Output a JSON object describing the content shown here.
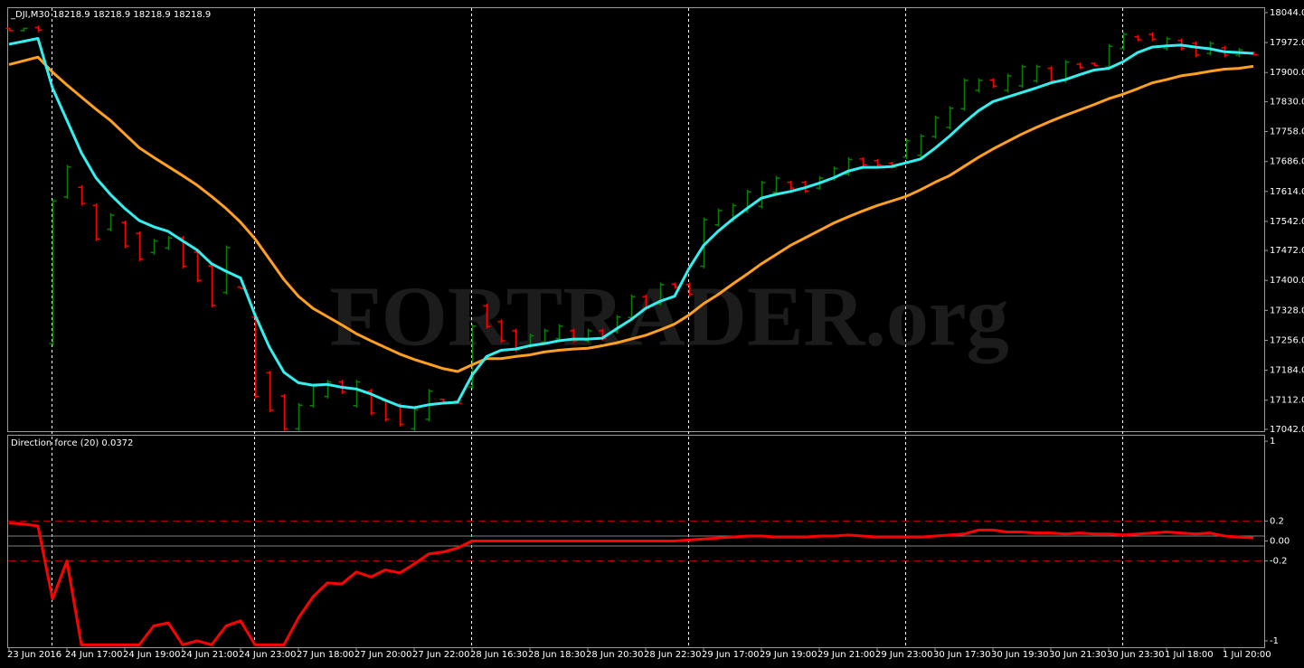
{
  "chart_data": [
    {
      "type": "ohlc",
      "title": "_DJI,M30  18218.9 18218.9 18218.9 18218.9",
      "watermark": "FORTRADER.org",
      "up_color": "#0b7d0b",
      "down_color": "#ff0000",
      "ylim": [
        17037.5,
        18057
      ],
      "yticks": [
        {
          "value": 18044,
          "label": "18044.0"
        },
        {
          "value": 17972,
          "label": "17972.0"
        },
        {
          "value": 17900,
          "label": "17900.0"
        },
        {
          "value": 17830,
          "label": "17830.0"
        },
        {
          "value": 17758,
          "label": "17758.0"
        },
        {
          "value": 17686,
          "label": "17686.0"
        },
        {
          "value": 17614,
          "label": "17614.0"
        },
        {
          "value": 17542,
          "label": "17542.0"
        },
        {
          "value": 17472,
          "label": "17472.0"
        },
        {
          "value": 17400,
          "label": "17400.0"
        },
        {
          "value": 17328,
          "label": "17328.0"
        },
        {
          "value": 17256,
          "label": "17256.0"
        },
        {
          "value": 17184,
          "label": "17184.0"
        },
        {
          "value": 17112,
          "label": "17112.0"
        },
        {
          "value": 17042,
          "label": "17042.0"
        }
      ],
      "session_breaks": [
        3,
        17,
        32,
        47,
        62,
        77
      ],
      "open": [
        18006,
        18001,
        18008,
        17248,
        17601,
        17624,
        17580,
        17523,
        17539,
        17513,
        17467,
        17478,
        17502,
        17468,
        17435,
        17371,
        17384,
        17312,
        17178,
        17122,
        17043,
        17099,
        17121,
        17156,
        17099,
        17134,
        17111,
        17100,
        17043,
        17066,
        17114,
        17110,
        17144,
        17339,
        17301,
        17279,
        17242,
        17251,
        17260,
        17279,
        17255,
        17279,
        17277,
        17311,
        17361,
        17344,
        17391,
        17390,
        17434,
        17534,
        17545,
        17567,
        17578,
        17612,
        17636,
        17636,
        17622,
        17645,
        17656,
        17692,
        17688,
        17682,
        17697,
        17701,
        17746,
        17768,
        17813,
        17857,
        17882,
        17857,
        17868,
        17880,
        17910,
        17880,
        17920,
        17922,
        17913,
        17958,
        17986,
        17992,
        17958,
        17977,
        17970,
        17946,
        17959,
        17942,
        17948
      ],
      "high": [
        18008,
        18008,
        18013,
        17596,
        17678,
        17629,
        17585,
        17562,
        17544,
        17518,
        17500,
        17507,
        17507,
        17473,
        17440,
        17484,
        17384,
        17317,
        17183,
        17127,
        17105,
        17150,
        17161,
        17161,
        17161,
        17139,
        17116,
        17105,
        17094,
        17139,
        17116,
        17112,
        17295,
        17344,
        17306,
        17284,
        17272,
        17284,
        17295,
        17284,
        17284,
        17284,
        17317,
        17366,
        17366,
        17395,
        17395,
        17395,
        17551,
        17573,
        17585,
        17618,
        17640,
        17651,
        17640,
        17640,
        17651,
        17674,
        17696,
        17696,
        17692,
        17685,
        17741,
        17752,
        17796,
        17819,
        17886,
        17886,
        17886,
        17897,
        17919,
        17919,
        17915,
        17930,
        17924,
        17924,
        17968,
        17997,
        17990,
        17997,
        17986,
        17982,
        17975,
        17975,
        17964,
        17959,
        17950
      ],
      "low": [
        17999,
        17999,
        17997,
        17243,
        17596,
        17580,
        17495,
        17518,
        17478,
        17446,
        17462,
        17473,
        17429,
        17395,
        17335,
        17366,
        17380,
        17116,
        17083,
        17038,
        17038,
        17094,
        17116,
        17127,
        17094,
        17076,
        17061,
        17049,
        17038,
        17061,
        17105,
        17103,
        17139,
        17284,
        17250,
        17228,
        17237,
        17246,
        17255,
        17250,
        17250,
        17255,
        17272,
        17306,
        17328,
        17339,
        17380,
        17362,
        17429,
        17529,
        17540,
        17562,
        17573,
        17607,
        17618,
        17611,
        17618,
        17640,
        17651,
        17674,
        17674,
        17669,
        17692,
        17696,
        17741,
        17763,
        17808,
        17852,
        17863,
        17852,
        17863,
        17875,
        17875,
        17875,
        17908,
        17915,
        17908,
        17953,
        17975,
        17975,
        17953,
        17953,
        17937,
        17941,
        17937,
        17937,
        17941
      ],
      "close": [
        18001,
        18006,
        18002,
        17591,
        17673,
        17585,
        17500,
        17557,
        17483,
        17451,
        17495,
        17502,
        17434,
        17400,
        17340,
        17479,
        17380,
        17121,
        17088,
        17043,
        17100,
        17145,
        17156,
        17132,
        17156,
        17081,
        17066,
        17054,
        17089,
        17134,
        17107,
        17105,
        17290,
        17289,
        17255,
        17233,
        17267,
        17279,
        17290,
        17255,
        17279,
        17260,
        17312,
        17361,
        17333,
        17390,
        17384,
        17367,
        17546,
        17568,
        17580,
        17613,
        17635,
        17646,
        17622,
        17615,
        17646,
        17669,
        17691,
        17678,
        17678,
        17672,
        17736,
        17747,
        17791,
        17814,
        17881,
        17881,
        17867,
        17892,
        17914,
        17914,
        17880,
        17925,
        17912,
        17917,
        17963,
        17992,
        17979,
        17980,
        17981,
        17958,
        17942,
        17970,
        17942,
        17954,
        17943
      ],
      "lines": [
        {
          "color": "#ffa020",
          "values": [
            17919,
            17928,
            17937,
            17901,
            17870,
            17841,
            17812,
            17785,
            17752,
            17719,
            17696,
            17674,
            17652,
            17629,
            17602,
            17573,
            17540,
            17500,
            17451,
            17402,
            17362,
            17333,
            17313,
            17293,
            17272,
            17255,
            17239,
            17223,
            17210,
            17199,
            17188,
            17181,
            17197,
            17212,
            17212,
            17217,
            17221,
            17228,
            17232,
            17235,
            17237,
            17243,
            17250,
            17259,
            17268,
            17281,
            17295,
            17317,
            17344,
            17366,
            17391,
            17415,
            17440,
            17462,
            17484,
            17502,
            17520,
            17538,
            17553,
            17567,
            17580,
            17591,
            17602,
            17618,
            17636,
            17652,
            17674,
            17696,
            17716,
            17734,
            17752,
            17768,
            17783,
            17797,
            17810,
            17823,
            17837,
            17848,
            17861,
            17875,
            17883,
            17892,
            17897,
            17903,
            17908,
            17910,
            17915
          ]
        },
        {
          "color": "#33f0f0",
          "values": [
            17968,
            17975,
            17982,
            17863,
            17785,
            17707,
            17647,
            17607,
            17573,
            17544,
            17529,
            17518,
            17495,
            17473,
            17440,
            17422,
            17406,
            17317,
            17239,
            17179,
            17154,
            17148,
            17150,
            17143,
            17139,
            17127,
            17112,
            17098,
            17094,
            17101,
            17105,
            17107,
            17172,
            17217,
            17232,
            17235,
            17243,
            17248,
            17255,
            17259,
            17259,
            17261,
            17284,
            17306,
            17333,
            17350,
            17362,
            17429,
            17484,
            17518,
            17547,
            17573,
            17598,
            17607,
            17614,
            17623,
            17634,
            17647,
            17663,
            17672,
            17672,
            17674,
            17683,
            17692,
            17718,
            17747,
            17779,
            17808,
            17830,
            17841,
            17852,
            17863,
            17875,
            17883,
            17895,
            17906,
            17910,
            17926,
            17948,
            17961,
            17964,
            17966,
            17961,
            17957,
            17950,
            17948,
            17946
          ]
        }
      ]
    },
    {
      "type": "line",
      "title": "Direction force (20) 0.0372",
      "color": "#ff0000",
      "ylim": [
        -1.064,
        1.064
      ],
      "yticks": [
        1,
        0.2,
        {
          "value": 0,
          "label": "0.00"
        },
        -0.2,
        -1
      ],
      "levels": [
        {
          "value": 0.2,
          "color": "#c00000",
          "dash": true
        },
        {
          "value": 0.05,
          "color": "#808080",
          "dash": false
        },
        {
          "value": -0.05,
          "color": "#808080",
          "dash": false
        },
        {
          "value": -0.2,
          "color": "#c00000",
          "dash": true
        }
      ],
      "categories": [
        "23 Jun 2016",
        null,
        null,
        null,
        "24 Jun 17:00",
        null,
        null,
        null,
        "24 Jun 19:00",
        null,
        null,
        null,
        "24 Jun 21:00",
        null,
        null,
        null,
        "24 Jun 23:00",
        null,
        null,
        null,
        "27 Jun 18:00",
        null,
        null,
        null,
        "27 Jun 20:00",
        null,
        null,
        null,
        "27 Jun 22:00",
        null,
        null,
        null,
        "28 Jun 16:30",
        null,
        null,
        null,
        "28 Jun 18:30",
        null,
        null,
        null,
        "28 Jun 20:30",
        null,
        null,
        null,
        "28 Jun 22:30",
        null,
        null,
        null,
        "29 Jun 17:00",
        null,
        null,
        null,
        "29 Jun 19:00",
        null,
        null,
        null,
        "29 Jun 21:00",
        null,
        null,
        null,
        "29 Jun 23:00",
        null,
        null,
        null,
        "30 Jun 17:30",
        null,
        null,
        null,
        "30 Jun 19:30",
        null,
        null,
        null,
        "30 Jun 21:30",
        null,
        null,
        null,
        "30 Jun 23:30",
        null,
        null,
        null,
        "1 Jul 18:00",
        null,
        null,
        null,
        "1 Jul 20:00",
        null,
        null
      ],
      "values": [
        0.18,
        0.17,
        0.15,
        -0.58,
        -0.2,
        -1.04,
        -1.04,
        -1.04,
        -1.04,
        -1.04,
        -0.85,
        -0.82,
        -1.04,
        -1,
        -1.04,
        -0.85,
        -0.8,
        -1.04,
        -1.04,
        -1.04,
        -0.77,
        -0.56,
        -0.42,
        -0.43,
        -0.31,
        -0.36,
        -0.29,
        -0.32,
        -0.23,
        -0.13,
        -0.11,
        -0.07,
        0,
        0,
        0,
        0,
        0,
        0,
        0,
        0,
        0,
        0,
        0,
        0,
        0,
        0,
        0,
        0.01,
        0.02,
        0.03,
        0.04,
        0.05,
        0.05,
        0.04,
        0.04,
        0.04,
        0.05,
        0.05,
        0.06,
        0.05,
        0.04,
        0.04,
        0.04,
        0.04,
        0.05,
        0.06,
        0.07,
        0.11,
        0.11,
        0.09,
        0.09,
        0.08,
        0.08,
        0.07,
        0.08,
        0.07,
        0.07,
        0.06,
        0.07,
        0.08,
        0.09,
        0.08,
        0.07,
        0.08,
        0.05,
        0.04,
        0.03
      ]
    }
  ]
}
